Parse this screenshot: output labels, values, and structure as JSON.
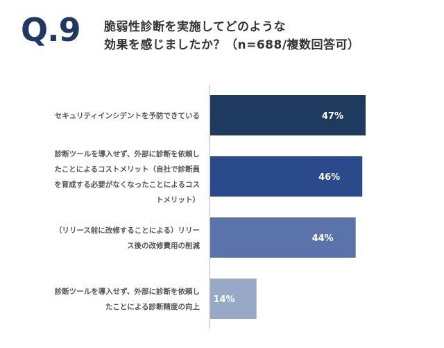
{
  "header": {
    "question_number": "Q.9",
    "question_line1": "脆弱性診断を実施してどのような",
    "question_line2": "効果を感じましたか？（n=688/複数回答可）"
  },
  "chart_data": {
    "type": "bar",
    "orientation": "horizontal",
    "categories": [
      [
        "セキュリティインシデントを予防できている"
      ],
      [
        "診断ツールを導入せず、外部に診断を依頼し",
        "たことによるコストメリット（自社で診断員",
        "を育成する必要がなくなったことによるコス",
        "トメリット）"
      ],
      [
        "（リリース前に改修することによる）リリー",
        "ス後の改修費用の削減"
      ],
      [
        "診断ツールを導入せず、外部に診断を依頼し",
        "たことによる診断精度の向上"
      ]
    ],
    "values": [
      47,
      46,
      44,
      14
    ],
    "value_labels": [
      "47%",
      "46%",
      "44%",
      "14%"
    ],
    "xlim": [
      0,
      60
    ],
    "colors": [
      "#1e3a5f",
      "#2b4a8c",
      "#5a74ab",
      "#97a9c6"
    ],
    "value_label_colors": [
      "#ffffff",
      "#ffffff",
      "#ffffff",
      "#ffffff"
    ],
    "axis_color": "#cccccc",
    "grid": false,
    "legend": "none"
  }
}
